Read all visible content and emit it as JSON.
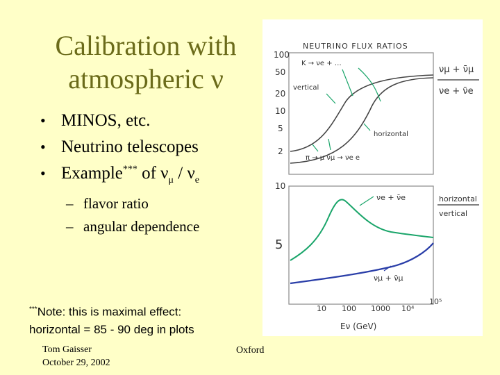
{
  "slide": {
    "title_line1": "Calibration with",
    "title_line2": "atmospheric ν",
    "bullets": [
      {
        "text": "MINOS, etc."
      },
      {
        "text": "Neutrino telescopes"
      },
      {
        "prefix": "Example",
        "sup": "***",
        "mid": " of ν",
        "sub1": "μ",
        "sep": " / ν",
        "sub2": "e"
      }
    ],
    "sub_bullets": [
      "flavor ratio",
      "angular dependence"
    ],
    "note_sup": "***",
    "note_line1": "Note: this is maximal effect:",
    "note_line2": "horizontal = 85 - 90 deg in plots",
    "footer_author": "Tom Gaisser",
    "footer_date": "October 29, 2002",
    "footer_place": "Oxford"
  },
  "figure": {
    "top_title": "NEUTRINO FLUX RATIOS",
    "top_yticks": [
      "100",
      "50",
      "20",
      "10",
      "5",
      "2"
    ],
    "top_labels": {
      "vertical": "vertical",
      "horizontal": "horizontal",
      "k_decay": "K → νe + …",
      "pi_decay": "π → μ νμ → νe e"
    },
    "top_ratio": {
      "num": "νμ + ν̄μ",
      "den": "νe + ν̄e"
    },
    "bottom_yticks": [
      "10",
      "5"
    ],
    "bottom_ratio": {
      "num": "horizontal",
      "den": "vertical"
    },
    "bottom_labels": {
      "nue": "νe + ν̄e",
      "numu": "νμ + ν̄μ"
    },
    "xticks": [
      "10",
      "100",
      "1000",
      "10⁴",
      "10⁵"
    ],
    "xlabel": "Eν (GeV)",
    "colors": {
      "green": "#1aa56a",
      "blue": "#2a3ea8",
      "ink": "#333333"
    }
  },
  "chart_data": [
    {
      "type": "line",
      "title": "NEUTRINO FLUX RATIOS",
      "ylabel": "(νμ + ν̄μ) / (νe + ν̄e)",
      "yscale": "log",
      "y_tick_labels": [
        "100",
        "50",
        "20",
        "10",
        "5",
        "2"
      ],
      "series": [
        {
          "name": "vertical",
          "points": [
            [
              0.0,
              2.8
            ],
            [
              0.25,
              4.5
            ],
            [
              0.45,
              10
            ],
            [
              0.6,
              18
            ],
            [
              0.8,
              24
            ],
            [
              1.0,
              26
            ]
          ]
        },
        {
          "name": "horizontal",
          "points": [
            [
              0.0,
              2.0
            ],
            [
              0.3,
              2.6
            ],
            [
              0.55,
              6
            ],
            [
              0.7,
              14
            ],
            [
              0.85,
              22
            ],
            [
              1.0,
              25
            ]
          ]
        }
      ]
    },
    {
      "type": "line",
      "ylabel": "horizontal / vertical",
      "xlabel": "Eν (GeV)",
      "xscale": "log",
      "x_tick_labels": [
        "10",
        "100",
        "1000",
        "10⁴",
        "10⁵"
      ],
      "y_tick_labels": [
        "10",
        "5"
      ],
      "series": [
        {
          "name": "νe + ν̄e",
          "x": [
            3,
            10,
            50,
            100,
            200,
            500,
            1000,
            3000,
            10000
          ],
          "y": [
            4.5,
            5.5,
            7.8,
            8.5,
            8.0,
            6.8,
            6.0,
            5.6,
            5.4
          ]
        },
        {
          "name": "νμ + ν̄μ",
          "x": [
            3,
            10,
            100,
            1000,
            3000,
            10000
          ],
          "y": [
            2.0,
            2.2,
            2.5,
            2.9,
            3.4,
            4.2
          ]
        }
      ]
    }
  ]
}
